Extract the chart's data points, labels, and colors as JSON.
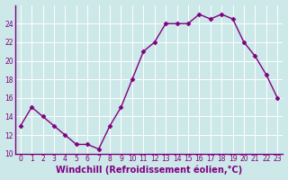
{
  "x": [
    0,
    1,
    2,
    3,
    4,
    5,
    6,
    7,
    8,
    9,
    10,
    11,
    12,
    13,
    14,
    15,
    16,
    17,
    18,
    19,
    20,
    21,
    22,
    23
  ],
  "y": [
    13,
    15,
    14,
    13,
    12,
    11,
    11,
    10.5,
    13,
    15,
    18,
    21,
    22,
    24,
    24,
    24,
    25,
    24.5,
    25,
    24.5,
    22,
    20.5,
    18.5,
    16
  ],
  "line_color": "#800080",
  "marker": "D",
  "markersize": 2.5,
  "linewidth": 1.0,
  "bg_color": "#cce8e8",
  "grid_color": "#b0d8d8",
  "xlabel": "Windchill (Refroidissement éolien,°C)",
  "ylim": [
    10,
    26
  ],
  "yticks": [
    10,
    12,
    14,
    16,
    18,
    20,
    22,
    24
  ],
  "xticks": [
    0,
    1,
    2,
    3,
    4,
    5,
    6,
    7,
    8,
    9,
    10,
    11,
    12,
    13,
    14,
    15,
    16,
    17,
    18,
    19,
    20,
    21,
    22,
    23
  ],
  "tick_fontsize": 5.5,
  "xlabel_fontsize": 7.0,
  "tick_color": "#800080",
  "label_color": "#800080",
  "spine_color": "#800080"
}
